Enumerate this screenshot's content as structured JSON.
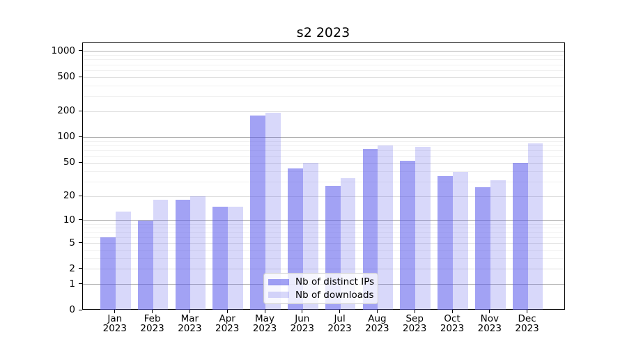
{
  "figure": {
    "background": "#ffffff",
    "title": "s2 2023"
  },
  "chart_data": {
    "type": "bar",
    "title": "s2 2023",
    "categories": [
      {
        "month": "Jan",
        "year": "2023"
      },
      {
        "month": "Feb",
        "year": "2023"
      },
      {
        "month": "Mar",
        "year": "2023"
      },
      {
        "month": "Apr",
        "year": "2023"
      },
      {
        "month": "May",
        "year": "2023"
      },
      {
        "month": "Jun",
        "year": "2023"
      },
      {
        "month": "Jul",
        "year": "2023"
      },
      {
        "month": "Aug",
        "year": "2023"
      },
      {
        "month": "Sep",
        "year": "2023"
      },
      {
        "month": "Oct",
        "year": "2023"
      },
      {
        "month": "Nov",
        "year": "2023"
      },
      {
        "month": "Dec",
        "year": "2023"
      }
    ],
    "series": [
      {
        "name": "Nb of distinct IPs",
        "color": "rgba(85,85,235,0.55)",
        "color_on_white": "#a1a1f4",
        "values": [
          6,
          10,
          18,
          15,
          180,
          43,
          27,
          73,
          53,
          35,
          26,
          50
        ]
      },
      {
        "name": "Nb of downloads",
        "color": "rgba(85,85,235,0.23)",
        "color_on_white": "#d8d8fa",
        "values": [
          13,
          18,
          20,
          15,
          195,
          50,
          33,
          80,
          78,
          39,
          31,
          85
        ]
      }
    ],
    "xlabel": "",
    "ylabel": "",
    "yscale": "log1p",
    "ylim": [
      0,
      1000
    ],
    "yticks": [
      0,
      1,
      2,
      5,
      10,
      20,
      50,
      100,
      200,
      500,
      1000
    ],
    "ytick_decades": [
      1,
      10,
      100,
      1000
    ],
    "yminor_gridlines": [
      3,
      4,
      6,
      7,
      8,
      9,
      30,
      40,
      60,
      70,
      80,
      90,
      300,
      400,
      600,
      700,
      800,
      900
    ],
    "grid": "horizontal major+minor",
    "grid_colors": {
      "decade": "#b0b0b0",
      "major": "#dedede",
      "minor": "#f0f0f0"
    },
    "legend": {
      "position": "lower center",
      "frame": true
    }
  }
}
